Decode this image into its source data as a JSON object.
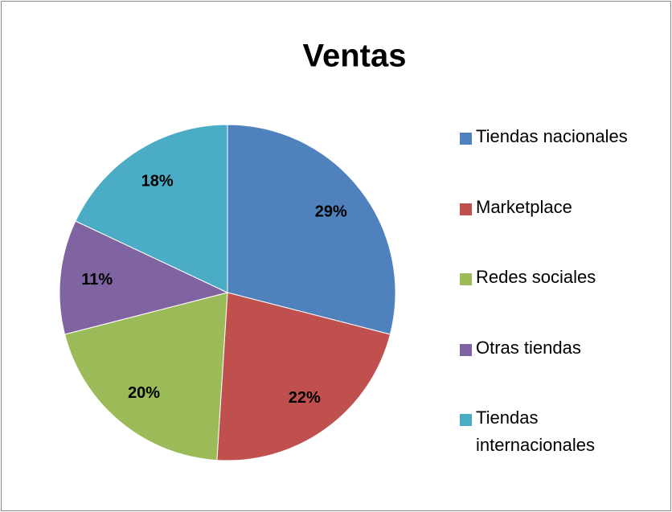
{
  "chart_data": {
    "type": "pie",
    "title": "Ventas",
    "categories": [
      "Tiendas nacionales",
      "Marketplace",
      "Redes sociales",
      "Otras tiendas",
      "Tiendas internacionales"
    ],
    "values": [
      29,
      22,
      20,
      11,
      18
    ],
    "value_labels": [
      "29%",
      "22%",
      "20%",
      "11%",
      "18%"
    ],
    "colors": [
      "#4f81bd",
      "#c0504d",
      "#9bbb59",
      "#8064a2",
      "#4bacc6"
    ],
    "legend": "right"
  }
}
